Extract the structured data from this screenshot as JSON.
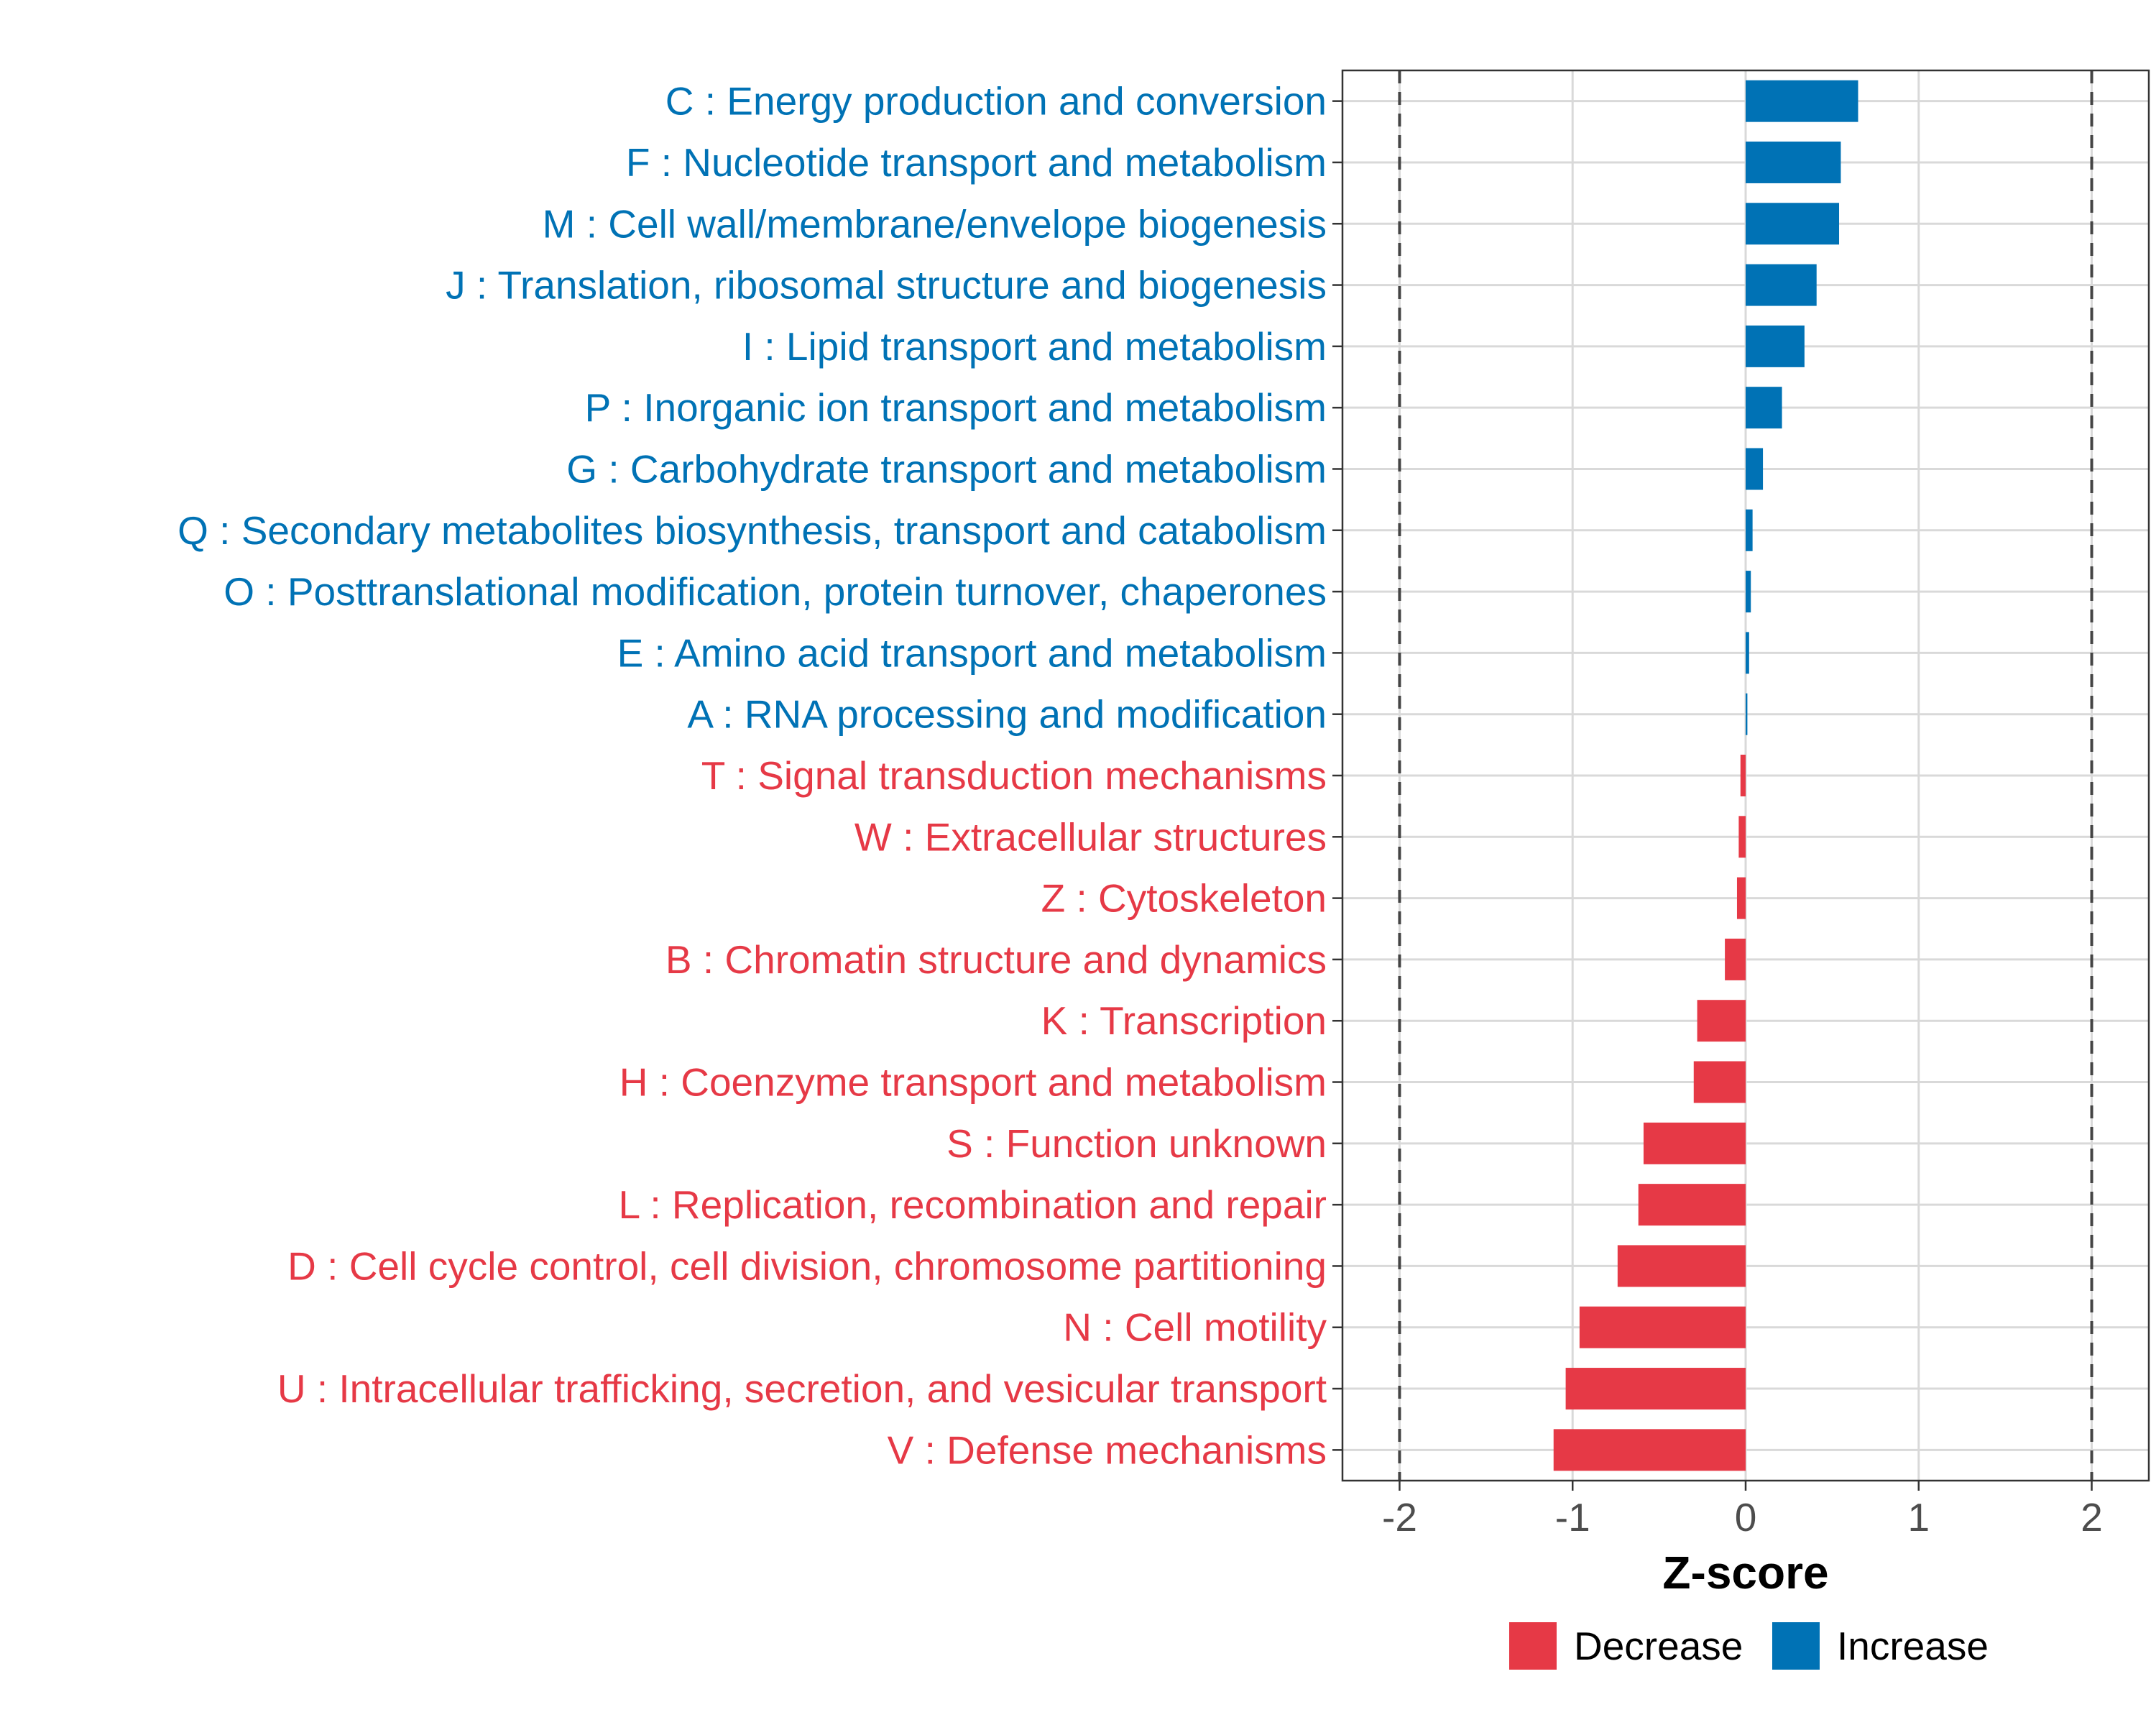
{
  "chart_data": {
    "type": "bar",
    "orientation": "horizontal",
    "title": "",
    "xlabel": "Z-score",
    "ylabel": "",
    "xlim": [
      -2.33,
      2.33
    ],
    "xticks": [
      -2,
      -1,
      0,
      1,
      2
    ],
    "xtick_labels": [
      "-2",
      "-1",
      "0",
      "1",
      "2"
    ],
    "reference_lines": [
      -2,
      2
    ],
    "grid": true,
    "legend_position": "bottom",
    "colors": {
      "Increase": "#0072b5",
      "Decrease": "#e63946"
    },
    "categories": [
      "C : Energy production and conversion",
      "F : Nucleotide transport and metabolism",
      "M : Cell wall/membrane/envelope biogenesis",
      "J : Translation, ribosomal structure and biogenesis",
      "I : Lipid transport and metabolism",
      "P : Inorganic ion transport and metabolism",
      "G : Carbohydrate transport and metabolism",
      "Q : Secondary metabolites biosynthesis, transport and catabolism",
      "O : Posttranslational modification, protein turnover, chaperones",
      "E : Amino acid transport and metabolism",
      "A : RNA processing and modification",
      "T : Signal transduction mechanisms",
      "W : Extracellular structures",
      "Z : Cytoskeleton",
      "B : Chromatin structure and dynamics",
      "K : Transcription",
      "H : Coenzyme transport and metabolism",
      "S : Function unknown",
      "L : Replication, recombination and repair",
      "D : Cell cycle control, cell division, chromosome partitioning",
      "N : Cell motility",
      "U : Intracellular trafficking, secretion, and vesicular transport",
      "V : Defense mechanisms"
    ],
    "values": [
      0.65,
      0.55,
      0.54,
      0.41,
      0.34,
      0.21,
      0.1,
      0.04,
      0.03,
      0.02,
      0.01,
      -0.03,
      -0.04,
      -0.05,
      -0.12,
      -0.28,
      -0.3,
      -0.59,
      -0.62,
      -0.74,
      -0.96,
      -1.04,
      -1.11
    ],
    "groups": [
      "Increase",
      "Increase",
      "Increase",
      "Increase",
      "Increase",
      "Increase",
      "Increase",
      "Increase",
      "Increase",
      "Increase",
      "Increase",
      "Decrease",
      "Decrease",
      "Decrease",
      "Decrease",
      "Decrease",
      "Decrease",
      "Decrease",
      "Decrease",
      "Decrease",
      "Decrease",
      "Decrease",
      "Decrease"
    ],
    "legend": [
      "Decrease",
      "Increase"
    ]
  }
}
